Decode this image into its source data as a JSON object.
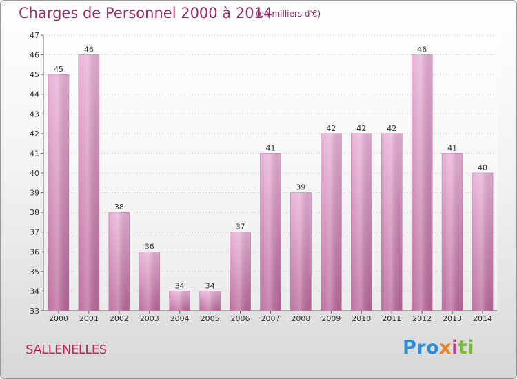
{
  "header": {
    "title": "Charges de Personnel 2000 à 2014",
    "subtitle": "(en milliers d'€)"
  },
  "footer": {
    "commune": "SALLENELLES",
    "brand_parts": [
      "Pro",
      "x",
      "i",
      "ti"
    ]
  },
  "chart_data": {
    "type": "bar",
    "title": "Charges de Personnel 2000 à 2014",
    "subtitle": "(en milliers d'€)",
    "categories": [
      "2000",
      "2001",
      "2002",
      "2003",
      "2004",
      "2005",
      "2006",
      "2007",
      "2008",
      "2009",
      "2010",
      "2011",
      "2012",
      "2013",
      "2014"
    ],
    "values": [
      45,
      46,
      38,
      36,
      34,
      34,
      37,
      41,
      39,
      42,
      42,
      42,
      46,
      41,
      40
    ],
    "ylim": [
      33,
      47
    ],
    "yticks": [
      33,
      34,
      35,
      36,
      37,
      38,
      39,
      40,
      41,
      42,
      43,
      44,
      45,
      46,
      47
    ],
    "grid": true,
    "bar_color": "#d890bd",
    "xlabel": "",
    "ylabel": ""
  }
}
